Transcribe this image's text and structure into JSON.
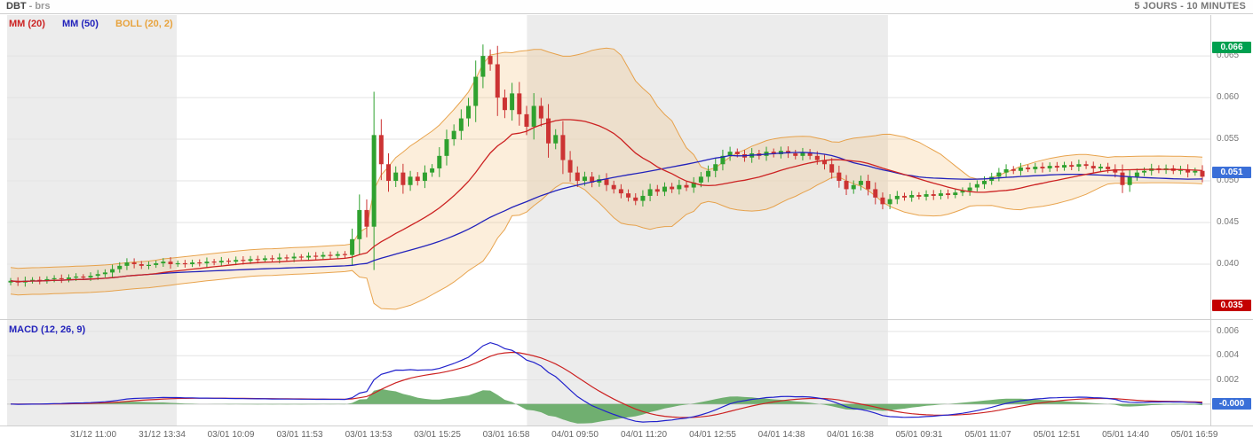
{
  "header": {
    "symbol": "DBT",
    "market_suffix": "- brs",
    "timeframe": "5 JOURS - 10 MINUTES"
  },
  "legend": {
    "items": [
      {
        "label": "MM (20)",
        "color": "#cc2222"
      },
      {
        "label": "MM (50)",
        "color": "#2222bb"
      },
      {
        "label": "BOLL (20, 2)",
        "color": "#e8a33d"
      }
    ]
  },
  "macd_panel": {
    "label": "MACD (12, 26, 9)",
    "color": "#2222bb"
  },
  "price_axis": {
    "ticks": [
      "0.065",
      "0.060",
      "0.055",
      "0.050",
      "0.045",
      "0.040"
    ],
    "high_badge": {
      "text": "0.066",
      "color": "#00a050"
    },
    "last_badge": {
      "text": "0.051",
      "color": "#3a6fd8"
    },
    "low_badge": {
      "text": "0.035",
      "color": "#c40000"
    }
  },
  "macd_axis": {
    "ticks": [
      "0.006",
      "0.004",
      "0.002"
    ],
    "zero_badge": {
      "text": "-0.000",
      "color": "#3a6fd8"
    }
  },
  "x_axis": {
    "labels": [
      "31/12 11:00",
      "31/12 13:34",
      "03/01 10:09",
      "03/01 11:53",
      "03/01 13:53",
      "03/01 15:25",
      "03/01 16:58",
      "04/01 09:50",
      "04/01 11:20",
      "04/01 12:55",
      "04/01 14:38",
      "04/01 16:38",
      "05/01 09:31",
      "05/01 11:07",
      "05/01 12:51",
      "05/01 14:40",
      "05/01 16:59"
    ]
  },
  "colors": {
    "candle_up": "#2fa12f",
    "candle_down": "#cc3333",
    "mm20": "#cc2222",
    "mm50": "#2222bb",
    "bollinger_line": "#e59a3c",
    "bollinger_fill": "#f0b35c",
    "macd_line": "#2222cc",
    "macd_signal": "#cc2222",
    "macd_hist": "#63a963",
    "session_shade": "#ececec",
    "grid": "#e3e3e3"
  },
  "chart_data": {
    "type": "candlestick",
    "title": "DBT - brs",
    "timeframe": "5 JOURS - 10 MINUTES",
    "price_axis_range": [
      0.0334,
      0.0698
    ],
    "macd_axis_range": [
      -0.00177,
      0.0068
    ],
    "indicators": {
      "mm20": {
        "type": "sma",
        "period": 20
      },
      "mm50": {
        "type": "sma",
        "period": 50
      },
      "bollinger": {
        "period": 20,
        "stddev": 2
      },
      "macd": {
        "fast": 12,
        "slow": 26,
        "signal": 9
      }
    },
    "sessions": [
      {
        "start": 0.0,
        "end": 0.141,
        "shaded": true
      },
      {
        "start": 0.141,
        "end": 0.432,
        "shaded": false
      },
      {
        "start": 0.432,
        "end": 0.732,
        "shaded": true
      },
      {
        "start": 0.732,
        "end": 1.0,
        "shaded": false
      }
    ],
    "closes": [
      0.038,
      0.0378,
      0.038,
      0.0381,
      0.038,
      0.0382,
      0.0383,
      0.0382,
      0.0384,
      0.0385,
      0.0384,
      0.0386,
      0.0388,
      0.039,
      0.0394,
      0.0398,
      0.0402,
      0.04,
      0.0398,
      0.0399,
      0.0401,
      0.0403,
      0.04,
      0.0401,
      0.04,
      0.0402,
      0.0401,
      0.0403,
      0.0402,
      0.0404,
      0.0403,
      0.0405,
      0.0404,
      0.0406,
      0.0405,
      0.0407,
      0.0406,
      0.0408,
      0.0407,
      0.0409,
      0.0408,
      0.041,
      0.0409,
      0.0411,
      0.041,
      0.0412,
      0.0411,
      0.043,
      0.0465,
      0.0445,
      0.0555,
      0.052,
      0.05,
      0.051,
      0.0495,
      0.0505,
      0.05,
      0.051,
      0.0515,
      0.053,
      0.055,
      0.056,
      0.0575,
      0.059,
      0.0625,
      0.065,
      0.064,
      0.06,
      0.0585,
      0.0605,
      0.058,
      0.0565,
      0.059,
      0.0575,
      0.0545,
      0.0555,
      0.0525,
      0.051,
      0.05,
      0.0505,
      0.0498,
      0.0502,
      0.0495,
      0.049,
      0.0485,
      0.048,
      0.0476,
      0.0482,
      0.049,
      0.0487,
      0.0493,
      0.049,
      0.0495,
      0.0492,
      0.0498,
      0.0505,
      0.0512,
      0.052,
      0.053,
      0.0535,
      0.0532,
      0.0528,
      0.0533,
      0.053,
      0.0535,
      0.0532,
      0.0536,
      0.0533,
      0.053,
      0.0534,
      0.053,
      0.0525,
      0.052,
      0.051,
      0.05,
      0.049,
      0.0495,
      0.05,
      0.049,
      0.048,
      0.0472,
      0.0478,
      0.0482,
      0.048,
      0.0483,
      0.0481,
      0.0484,
      0.0482,
      0.0485,
      0.0483,
      0.0486,
      0.0488,
      0.0492,
      0.0496,
      0.05,
      0.0505,
      0.051,
      0.0514,
      0.0512,
      0.0516,
      0.0514,
      0.0517,
      0.0515,
      0.0518,
      0.0516,
      0.0519,
      0.0517,
      0.052,
      0.0518,
      0.0515,
      0.0517,
      0.0514,
      0.051,
      0.0495,
      0.0505,
      0.051,
      0.0512,
      0.0515,
      0.0513,
      0.0515,
      0.0512,
      0.0514,
      0.051,
      0.0512,
      0.0505
    ]
  }
}
